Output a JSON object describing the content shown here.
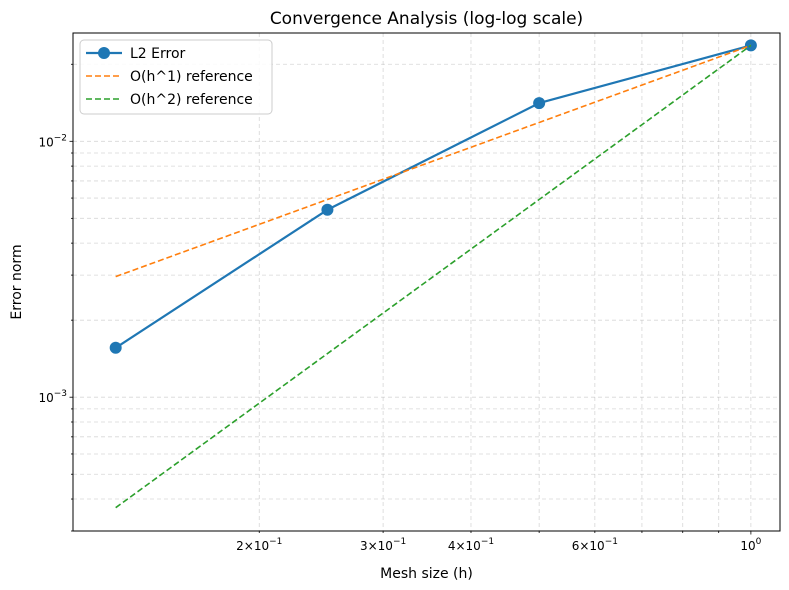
{
  "chart_data": {
    "type": "line",
    "title": "Convergence Analysis (log-log scale)",
    "xlabel": "Mesh size (h)",
    "ylabel": "Error norm",
    "xscale": "log",
    "yscale": "log",
    "xlim": [
      0.1087,
      1.1
    ],
    "ylim": [
      0.0003,
      0.0265
    ],
    "grid": true,
    "legend_position": "top-left",
    "x_ticks": [
      {
        "value": 0.2,
        "mant": "2",
        "exp": "−1"
      },
      {
        "value": 0.3,
        "mant": "3",
        "exp": "−1"
      },
      {
        "value": 0.4,
        "mant": "4",
        "exp": "−1"
      },
      {
        "value": 0.6,
        "mant": "6",
        "exp": "−1"
      },
      {
        "value": 1.0,
        "mant": "",
        "exp": "0"
      }
    ],
    "y_ticks": [
      {
        "value": 0.001,
        "exp": "−3"
      },
      {
        "value": 0.01,
        "exp": "−2"
      }
    ],
    "series": [
      {
        "name": "L2 Error",
        "color": "#1f77b4",
        "style": "solid-markers",
        "x": [
          0.125,
          0.25,
          0.5,
          1.0
        ],
        "y": [
          0.00156,
          0.0054,
          0.0141,
          0.0237
        ]
      },
      {
        "name": "O(h^1) reference",
        "color": "#ff7f0e",
        "style": "dashed",
        "x": [
          0.125,
          1.0
        ],
        "y": [
          0.00296,
          0.0237
        ]
      },
      {
        "name": "O(h^2) reference",
        "color": "#2ca02c",
        "style": "dashed",
        "x": [
          0.125,
          1.0
        ],
        "y": [
          0.00037,
          0.0237
        ]
      }
    ]
  }
}
